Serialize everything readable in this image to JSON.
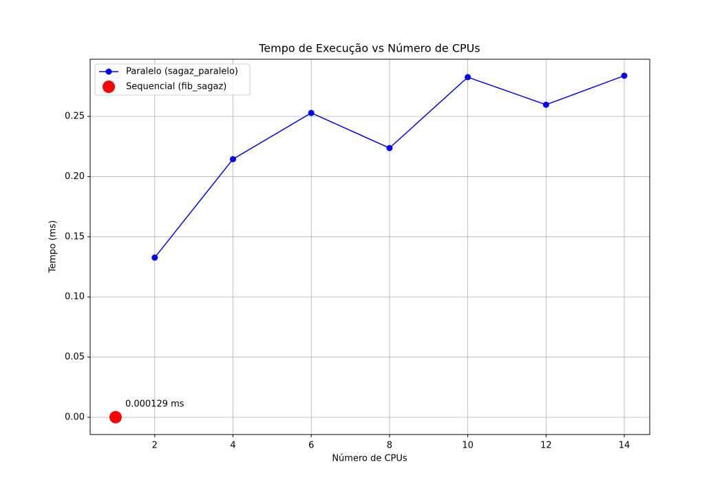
{
  "chart_data": {
    "type": "line",
    "title": "Tempo de Execução vs Número de CPUs",
    "x_label": "Número de CPUs",
    "y_label": "Tempo (ms)",
    "series": [
      {
        "name": "Paralelo (sagaz_paralelo)",
        "color": "#0000ff",
        "mode": "line-marker",
        "x": [
          2,
          4,
          6,
          8,
          10,
          12,
          14
        ],
        "values": [
          0.1327,
          0.2145,
          0.2529,
          0.2237,
          0.2826,
          0.2597,
          0.2838
        ]
      },
      {
        "name": "Sequencial (fib_sagaz)",
        "color": "#ff0000",
        "mode": "scatter",
        "x": [
          1
        ],
        "values": [
          0.000129
        ]
      }
    ],
    "annotation": {
      "text": "0.000129 ms",
      "color": "#ff0000"
    },
    "xlim": [
      0.35,
      14.65
    ],
    "xticks": [
      2,
      4,
      6,
      8,
      10,
      12,
      14
    ],
    "ylim": [
      -0.0143,
      0.2975
    ],
    "yticks": [
      {
        "value": 0,
        "label": "0.00"
      },
      {
        "value": 0.05,
        "label": "0.05"
      },
      {
        "value": 0.1,
        "label": "0.10"
      },
      {
        "value": 0.15,
        "label": "0.15"
      },
      {
        "value": 0.2,
        "label": "0.20"
      },
      {
        "value": 0.25,
        "label": "0.25"
      }
    ],
    "grid": true,
    "legend": "upper-left"
  }
}
